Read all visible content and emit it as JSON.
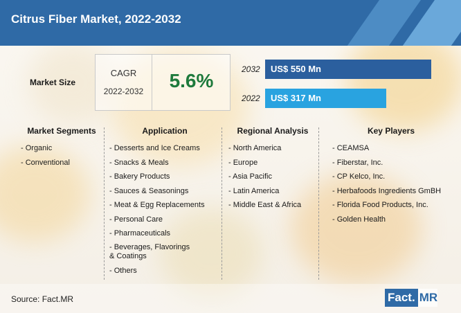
{
  "title": "Citrus Fiber Market, 2022-2032",
  "market_size_label": "Market Size",
  "cagr": {
    "label": "CAGR",
    "period": "2022-2032",
    "value": "5.6%"
  },
  "bars": [
    {
      "year": "2032",
      "label": "US$ 550 Mn",
      "value": 550,
      "color": "#2b5f9e"
    },
    {
      "year": "2022",
      "label": "US$ 317 Mn",
      "value": 317,
      "color": "#29a3e0"
    }
  ],
  "columns": {
    "segments": {
      "heading": "Market Segments",
      "items": [
        "- Organic",
        "- Conventional"
      ]
    },
    "application": {
      "heading": "Application",
      "items": [
        "- Desserts and Ice Creams",
        "- Snacks & Meals",
        "- Bakery Products",
        "- Sauces & Seasonings",
        "- Meat & Egg Replacements",
        "- Personal Care",
        "- Pharmaceuticals",
        "- Beverages, Flavorings",
        "& Coatings",
        "- Others"
      ]
    },
    "regional": {
      "heading": "Regional Analysis",
      "items": [
        "- North America",
        "- Europe",
        "- Asia Pacific",
        "- Latin America",
        "- Middle East & Africa"
      ]
    },
    "players": {
      "heading": "Key Players",
      "items": [
        "- CEAMSA",
        "- Fiberstar, Inc.",
        "- CP Kelco, Inc.",
        "- Herbafoods Ingredients GmBH",
        "- Florida Food Products, Inc.",
        "- Golden Health"
      ]
    }
  },
  "source": "Source: Fact.MR",
  "logo": {
    "part1": "Fact.",
    "part2": "MR"
  },
  "colors": {
    "header": "#2f6aa6",
    "cagr": "#1e7a3c"
  }
}
